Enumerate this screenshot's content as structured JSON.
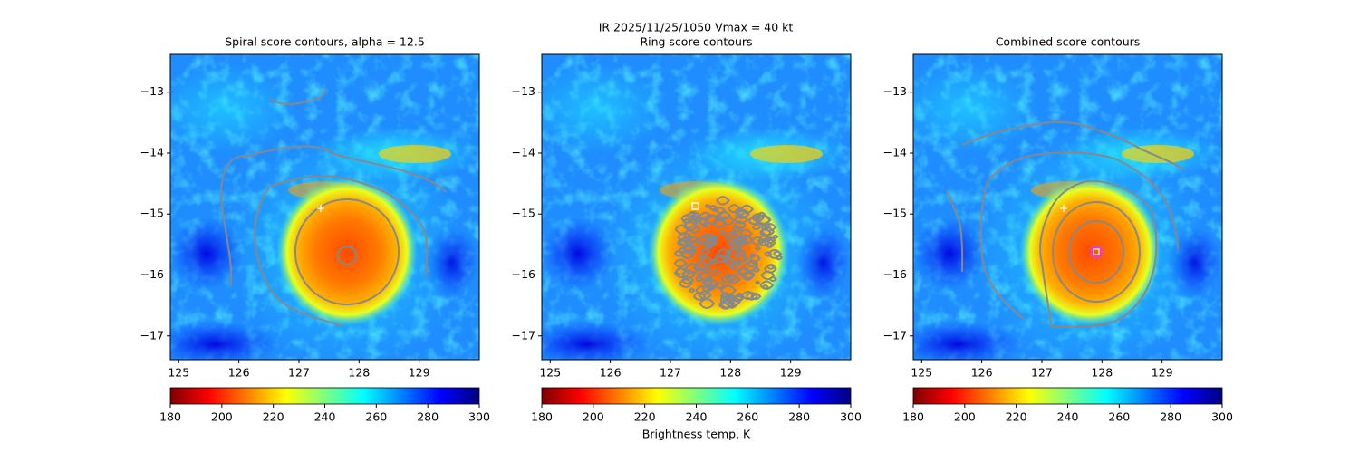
{
  "suptitle": "IR  2025/11/25/1050    Vmax = 40 kt",
  "chart_data": [
    {
      "type": "image",
      "title": "Spiral score contours, alpha = 12.5",
      "xlim": [
        124.86,
        130.0
      ],
      "ylim": [
        -17.39,
        -12.38
      ],
      "xticks": [
        125,
        126,
        127,
        128,
        129
      ],
      "yticks": [
        {
          "value": -13,
          "label": "−13"
        },
        {
          "value": -14,
          "label": "−14"
        },
        {
          "value": -15,
          "label": "−15"
        },
        {
          "value": -16,
          "label": "−16"
        },
        {
          "value": -17,
          "label": "−17"
        }
      ],
      "colormap": "jet_r",
      "clim": [
        180,
        300
      ],
      "cticks": [
        180,
        200,
        220,
        240,
        260,
        280,
        300
      ]
    },
    {
      "type": "image",
      "title": "Ring score contours",
      "xlim": [
        124.86,
        130.0
      ],
      "ylim": [
        -17.39,
        -12.38
      ],
      "xticks": [
        125,
        126,
        127,
        128,
        129
      ],
      "yticks": [
        {
          "value": -13,
          "label": "−13"
        },
        {
          "value": -14,
          "label": "−14"
        },
        {
          "value": -15,
          "label": "−15"
        },
        {
          "value": -16,
          "label": "−16"
        },
        {
          "value": -17,
          "label": "−17"
        }
      ],
      "colormap": "jet_r",
      "clim": [
        180,
        300
      ],
      "cticks": [
        180,
        200,
        220,
        240,
        260,
        280,
        300
      ],
      "clabel": "Brightness temp, K"
    },
    {
      "type": "image",
      "title": "Combined score contours",
      "xlim": [
        124.86,
        130.0
      ],
      "ylim": [
        -17.39,
        -12.38
      ],
      "xticks": [
        125,
        126,
        127,
        128,
        129
      ],
      "yticks": [
        {
          "value": -13,
          "label": "−13"
        },
        {
          "value": -14,
          "label": "−14"
        },
        {
          "value": -15,
          "label": "−15"
        },
        {
          "value": -16,
          "label": "−16"
        },
        {
          "value": -17,
          "label": "−17"
        }
      ],
      "colormap": "jet_r",
      "clim": [
        180,
        300
      ],
      "cticks": [
        180,
        200,
        220,
        240,
        260,
        280,
        300
      ]
    }
  ]
}
